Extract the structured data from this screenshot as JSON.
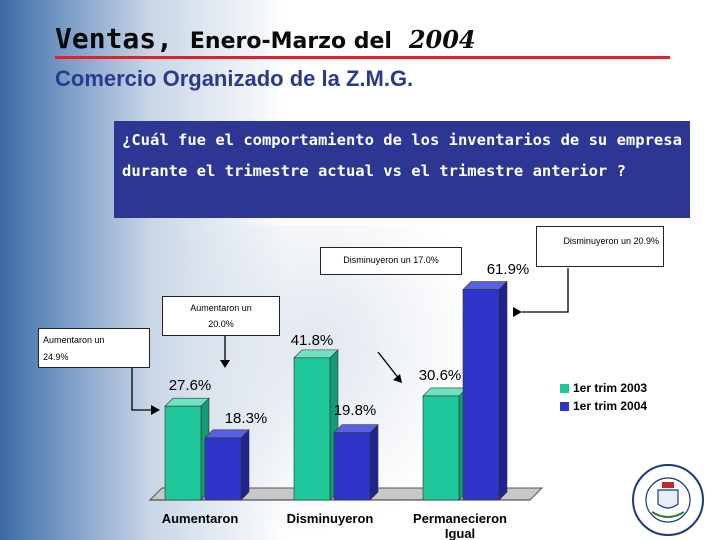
{
  "header": {
    "title_part1": "Ventas,",
    "title_part2": "Enero-Marzo del",
    "title_part3": "2004",
    "subtitle": "Comercio Organizado de la Z.M.G."
  },
  "question": "¿Cuál fue el comportamiento de los inventarios de su empresa durante el trimestre actual vs el trimestre anterior ?",
  "callouts": {
    "disminuyeron_curr": "Disminuyeron un 20.9%",
    "disminuyeron_prev": "Disminuyeron un 17.0%",
    "aumentaron_mid_line1": "Aumentaron un",
    "aumentaron_mid_line2": "20.0%",
    "aumentaron_left_line1": "Aumentaron un",
    "aumentaron_left_line2": "24.9%"
  },
  "colors": {
    "series1": "#1fc79a",
    "series2": "#2f35c8",
    "title_rule": "#e0202a",
    "question_bg": "#2e3694"
  },
  "chart_data": {
    "type": "bar",
    "categories": [
      "Aumentaron",
      "Disminuyeron",
      "Permanecieron Igual"
    ],
    "series": [
      {
        "name": "1er trim 2003",
        "values": [
          27.6,
          41.8,
          30.6
        ],
        "labels": [
          "27.6%",
          "41.8%",
          "30.6%"
        ]
      },
      {
        "name": "1er trim 2004",
        "values": [
          18.3,
          19.8,
          61.9
        ],
        "labels": [
          "18.3%",
          "19.8%",
          "61.9%"
        ]
      }
    ],
    "ylim": [
      0,
      70
    ],
    "legend": "right",
    "grid": false,
    "style": "3d"
  }
}
